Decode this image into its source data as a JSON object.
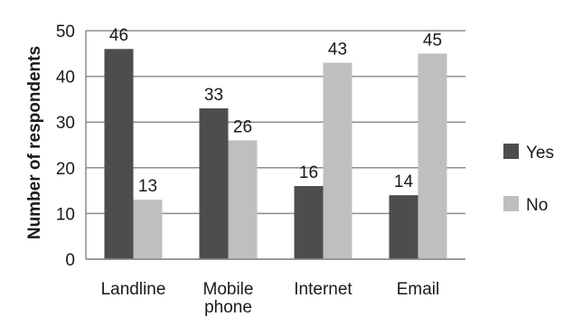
{
  "chart_data": {
    "type": "bar",
    "categories": [
      "Landline",
      "Mobile phone",
      "Internet",
      "Email"
    ],
    "category_lines": [
      [
        "Landline"
      ],
      [
        "Mobile",
        "phone"
      ],
      [
        "Internet"
      ],
      [
        "Email"
      ]
    ],
    "series": [
      {
        "name": "Yes",
        "values": [
          46,
          33,
          16,
          14
        ],
        "color": "#4d4d4d"
      },
      {
        "name": "No",
        "values": [
          13,
          26,
          43,
          45
        ],
        "color": "#bfbfbf"
      }
    ],
    "ylabel": "Number of respondents",
    "ylim": [
      0,
      50
    ],
    "yticks": [
      0,
      10,
      20,
      30,
      40,
      50
    ],
    "grid": true,
    "legend": "right",
    "data_labels": true
  }
}
